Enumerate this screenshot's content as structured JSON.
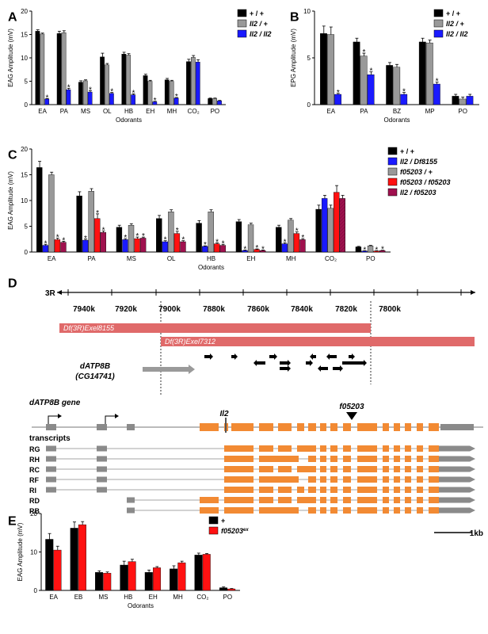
{
  "colors": {
    "black": "#000000",
    "gray": "#999999",
    "blue": "#1a1aff",
    "red": "#ff1111",
    "maroon": "#a0104e",
    "deletion": "#e06a6a",
    "exon": "#f28a33",
    "utr": "#8a8a8a"
  },
  "panels": [
    {
      "label": "A",
      "chart_data": {
        "type": "bar",
        "ylabel": "EAG Amplitude (mV)",
        "xlabel": "Odorants",
        "ylim": [
          0,
          20
        ],
        "yticks": [
          0,
          5,
          10,
          15,
          20
        ],
        "categories": [
          "EA",
          "PA",
          "MS",
          "OL",
          "HB",
          "EH",
          "MH",
          "CO₂",
          "PO"
        ],
        "legend": {
          "position": "top-right"
        },
        "series": [
          {
            "name": "+ / +",
            "color": "#000000",
            "values": [
              15.7,
              15.2,
              4.8,
              10.2,
              10.8,
              6.2,
              5.3,
              9.2,
              1.3
            ],
            "errors": [
              0.3,
              0.5,
              0.3,
              0.8,
              0.4,
              0.3,
              0.3,
              0.5,
              0.1
            ]
          },
          {
            "name": "Il2 / +",
            "color": "#999999",
            "values": [
              15.1,
              15.4,
              5.1,
              8.5,
              10.6,
              5.0,
              5.0,
              10.1,
              1.3
            ],
            "errors": [
              0.2,
              0.4,
              0.2,
              0.3,
              0.3,
              0.2,
              0.2,
              0.4,
              0.1
            ]
          },
          {
            "name": "Il2 / Il2",
            "color": "#1a1aff",
            "values": [
              1.2,
              3.2,
              2.7,
              2.4,
              2.1,
              0.6,
              1.4,
              9.1,
              0.8
            ],
            "errors": [
              0.1,
              0.3,
              0.3,
              0.2,
              0.2,
              0.1,
              0.1,
              0.5,
              0.1
            ]
          }
        ],
        "stars": [
          [
            0,
            2
          ],
          [
            1,
            2
          ],
          [
            2,
            2
          ],
          [
            3,
            2
          ],
          [
            4,
            2
          ],
          [
            5,
            2
          ],
          [
            6,
            2
          ]
        ]
      }
    },
    {
      "label": "B",
      "chart_data": {
        "type": "bar",
        "ylabel": "EPG Amplitude (mV)",
        "xlabel": "Odorants",
        "ylim": [
          0,
          10
        ],
        "yticks": [
          0,
          5,
          10
        ],
        "categories": [
          "EA",
          "PA",
          "BZ",
          "MP",
          "PO"
        ],
        "legend": {
          "position": "top-right"
        },
        "series": [
          {
            "name": "+ / +",
            "color": "#000000",
            "values": [
              7.6,
              6.7,
              4.2,
              6.7,
              0.9
            ],
            "errors": [
              0.8,
              0.4,
              0.3,
              0.4,
              0.2
            ]
          },
          {
            "name": "Il2 / +",
            "color": "#999999",
            "values": [
              7.5,
              5.2,
              4.0,
              6.6,
              0.6
            ],
            "errors": [
              0.8,
              0.3,
              0.3,
              0.3,
              0.2
            ]
          },
          {
            "name": "Il2 / Il2",
            "color": "#1a1aff",
            "values": [
              1.1,
              3.2,
              1.1,
              2.2,
              0.9
            ],
            "errors": [
              0.1,
              0.3,
              0.2,
              0.2,
              0.2
            ]
          }
        ],
        "stars": [
          [
            0,
            2
          ],
          [
            1,
            1
          ],
          [
            1,
            2
          ],
          [
            2,
            2
          ],
          [
            3,
            2
          ]
        ]
      }
    },
    {
      "label": "C",
      "chart_data": {
        "type": "bar",
        "ylabel": "EAG Amplitude (mV)",
        "xlabel": "Odorants",
        "ylim": [
          0,
          20
        ],
        "yticks": [
          0,
          5,
          10,
          15,
          20
        ],
        "categories": [
          "EA",
          "PA",
          "MS",
          "OL",
          "HB",
          "EH",
          "MH",
          "CO₂",
          "PO"
        ],
        "legend": {
          "position": "top-right"
        },
        "series": [
          {
            "name": "+ / +",
            "color": "#000000",
            "values": [
              16.4,
              10.9,
              4.8,
              6.5,
              5.6,
              5.9,
              4.8,
              8.3,
              1.0
            ],
            "errors": [
              1.2,
              0.8,
              0.4,
              0.6,
              0.5,
              0.4,
              0.4,
              0.8,
              0.1
            ]
          },
          {
            "name": "Il2 / Df8155",
            "color": "#1a1aff",
            "values": [
              1.3,
              2.3,
              2.4,
              2.0,
              1.1,
              0.3,
              1.6,
              10.4,
              0.2
            ],
            "errors": [
              0.2,
              0.2,
              0.2,
              0.2,
              0.1,
              0.1,
              0.2,
              0.6,
              0.05
            ]
          },
          {
            "name": "f05203 / +",
            "color": "#999999",
            "values": [
              15.0,
              11.8,
              5.2,
              7.8,
              7.8,
              5.3,
              6.2,
              8.5,
              1.2
            ],
            "errors": [
              0.5,
              0.5,
              0.3,
              0.4,
              0.4,
              0.3,
              0.3,
              0.6,
              0.1
            ]
          },
          {
            "name": "f05203 / f05203",
            "color": "#ff1111",
            "values": [
              2.4,
              6.5,
              2.6,
              3.6,
              1.6,
              0.5,
              3.6,
              11.6,
              0.2
            ],
            "errors": [
              0.3,
              0.9,
              0.3,
              0.4,
              0.2,
              0.1,
              0.3,
              1.3,
              0.05
            ]
          },
          {
            "name": "Il2 / f05203",
            "color": "#a0104e",
            "values": [
              1.9,
              3.8,
              2.7,
              2.0,
              1.3,
              0.3,
              2.4,
              10.4,
              0.3
            ],
            "errors": [
              0.2,
              0.3,
              0.2,
              0.2,
              0.2,
              0.1,
              0.2,
              0.6,
              0.05
            ]
          }
        ],
        "stars": [
          [
            0,
            1
          ],
          [
            0,
            3
          ],
          [
            0,
            4
          ],
          [
            1,
            1
          ],
          [
            1,
            3
          ],
          [
            1,
            4
          ],
          [
            2,
            1
          ],
          [
            2,
            3
          ],
          [
            2,
            4
          ],
          [
            3,
            1
          ],
          [
            3,
            3
          ],
          [
            3,
            4
          ],
          [
            4,
            1
          ],
          [
            4,
            3
          ],
          [
            4,
            4
          ],
          [
            5,
            1
          ],
          [
            5,
            3
          ],
          [
            5,
            4
          ],
          [
            6,
            1
          ],
          [
            6,
            3
          ],
          [
            6,
            4
          ],
          [
            8,
            1
          ],
          [
            8,
            3
          ],
          [
            8,
            4
          ]
        ]
      }
    },
    {
      "label": "E",
      "chart_data": {
        "type": "bar",
        "ylabel": "EAG Amplitude (mV)",
        "xlabel": "Odorants",
        "ylim": [
          0,
          20
        ],
        "yticks": [
          0,
          10,
          20
        ],
        "categories": [
          "EA",
          "EB",
          "MS",
          "HB",
          "EH",
          "MH",
          "CO₂",
          "PO"
        ],
        "legend": {
          "position": "top-right"
        },
        "series": [
          {
            "name": "+",
            "color": "#000000",
            "values": [
              13.3,
              16.2,
              4.7,
              6.6,
              4.7,
              5.6,
              9.2,
              0.7
            ],
            "errors": [
              1.5,
              1.6,
              0.4,
              1.0,
              0.6,
              0.8,
              0.5,
              0.2
            ]
          },
          {
            "name": "f05203",
            "sup": "ex",
            "color": "#ff1111",
            "values": [
              10.5,
              17.1,
              4.5,
              7.5,
              5.9,
              7.2,
              9.4,
              0.4
            ],
            "errors": [
              1.0,
              0.8,
              0.3,
              0.6,
              0.3,
              0.4,
              0.2,
              0.1
            ]
          }
        ],
        "stars": []
      }
    }
  ],
  "genome": {
    "label": "D",
    "chromosome": "3R",
    "scale_ticks": [
      "7940k",
      "7920k",
      "7900k",
      "7880k",
      "7860k",
      "7840k",
      "7820k",
      "7800k"
    ],
    "deletions": [
      "Df(3R)Exel8155",
      "Df(3R)Exel7312"
    ],
    "gene_name": "dATP8B",
    "gene_alias": "(CG14741)",
    "gene_model_title": "dATP8B gene",
    "allele_il2": "Il2",
    "allele_f05203": "f05203",
    "transcripts_title": "transcripts",
    "transcripts": [
      "RG",
      "RH",
      "RC",
      "RF",
      "RI",
      "RD",
      "RB"
    ],
    "scale_bar": "1kb"
  }
}
